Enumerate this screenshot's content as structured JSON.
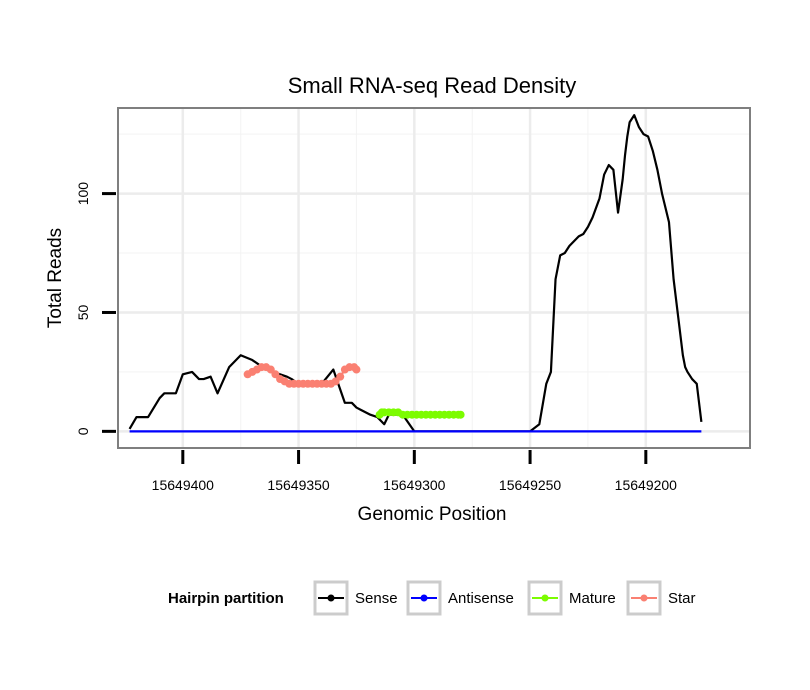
{
  "chart_data": {
    "type": "line",
    "title": "Small RNA-seq Read Density",
    "xlabel": "Genomic Position",
    "ylabel": "Total Reads",
    "xlim": [
      15649428,
      15649155
    ],
    "ylim": [
      -7,
      136
    ],
    "x_ticks": [
      15649400,
      15649350,
      15649300,
      15649250,
      15649200
    ],
    "x_tick_labels": [
      "15649400",
      "15649350",
      "15649300",
      "15649250",
      "15649200"
    ],
    "y_ticks": [
      0,
      50,
      100
    ],
    "y_tick_labels": [
      "0",
      "50",
      "100"
    ],
    "grid": true,
    "legend": {
      "title": "Hairpin partition",
      "position": "bottom",
      "entries": [
        {
          "label": "Sense",
          "color": "#000000"
        },
        {
          "label": "Antisense",
          "color": "#0000ff"
        },
        {
          "label": "Mature",
          "color": "#7cfc00"
        },
        {
          "label": "Star",
          "color": "#fa8072"
        }
      ]
    },
    "series": [
      {
        "name": "Sense",
        "color": "#000000",
        "x": [
          15649423,
          15649420,
          15649415,
          15649410,
          15649408,
          15649403,
          15649400,
          15649396,
          15649393,
          15649391,
          15649388,
          15649385,
          15649380,
          15649375,
          15649370,
          15649367,
          15649364,
          15649361,
          15649358,
          15649355,
          15649353,
          15649350,
          15649348,
          15649346,
          15649343,
          15649340,
          15649335,
          15649330,
          15649327,
          15649325,
          15649323,
          15649321,
          15649319,
          15649316,
          15649313,
          15649311,
          15649309,
          15649307,
          15649305,
          15649300,
          15649290,
          15649280,
          15649270,
          15649265,
          15649263,
          15649262,
          15649261,
          15649260,
          15649259,
          15649258,
          15649257,
          15649255,
          15649253,
          15649250,
          15649246,
          15649243,
          15649241,
          15649239,
          15649237,
          15649235,
          15649233,
          15649231,
          15649229,
          15649227,
          15649225,
          15649223,
          15649220,
          15649218,
          15649216,
          15649214,
          15649212,
          15649210,
          15649209,
          15649208,
          15649207,
          15649205,
          15649203,
          15649201,
          15649199,
          15649197,
          15649195,
          15649193,
          15649190,
          15649188,
          15649186,
          15649184,
          15649183,
          15649182,
          15649180,
          15649178,
          15649177,
          15649176
        ],
        "y": [
          1,
          6,
          6,
          14,
          16,
          16,
          24,
          25,
          22,
          22,
          23,
          16,
          27,
          32,
          30,
          28,
          26,
          25,
          24,
          23,
          22,
          20,
          20,
          20,
          20,
          20,
          26,
          12,
          12,
          10,
          9,
          8,
          7,
          6,
          3,
          7,
          7,
          7,
          7,
          0,
          0,
          0,
          0,
          0,
          0,
          0,
          0,
          0,
          0,
          0,
          0,
          0,
          0,
          0,
          3,
          20,
          25,
          64,
          74,
          75,
          78,
          80,
          82,
          83,
          86,
          90,
          98,
          108,
          112,
          110,
          92,
          106,
          116,
          124,
          130,
          133,
          128,
          125,
          124,
          118,
          110,
          100,
          88,
          64,
          48,
          32,
          27,
          25,
          22,
          20,
          12,
          4
        ]
      },
      {
        "name": "Antisense",
        "color": "#0000ff",
        "x": [
          15649423,
          15649176
        ],
        "y": [
          0,
          0
        ]
      },
      {
        "name": "Star",
        "color": "#fa8072",
        "x": [
          15649372,
          15649370,
          15649368,
          15649366,
          15649364,
          15649362,
          15649360,
          15649358,
          15649356,
          15649354,
          15649352,
          15649350,
          15649348,
          15649346,
          15649344,
          15649342,
          15649340,
          15649338,
          15649336,
          15649334,
          15649332,
          15649330,
          15649328,
          15649326,
          15649325
        ],
        "y": [
          24,
          25,
          26,
          27,
          27,
          26,
          24,
          22,
          21,
          20,
          20,
          20,
          20,
          20,
          20,
          20,
          20,
          20,
          20,
          21,
          23,
          26,
          27,
          27,
          26
        ]
      },
      {
        "name": "Mature",
        "color": "#7cfc00",
        "x": [
          15649315,
          15649314,
          15649313,
          15649311,
          15649309,
          15649307,
          15649305,
          15649303,
          15649301,
          15649299,
          15649297,
          15649295,
          15649293,
          15649291,
          15649289,
          15649287,
          15649285,
          15649283,
          15649281,
          15649280
        ],
        "y": [
          7,
          8,
          8,
          8,
          8,
          8,
          7,
          7,
          7,
          7,
          7,
          7,
          7,
          7,
          7,
          7,
          7,
          7,
          7,
          7
        ]
      }
    ]
  }
}
